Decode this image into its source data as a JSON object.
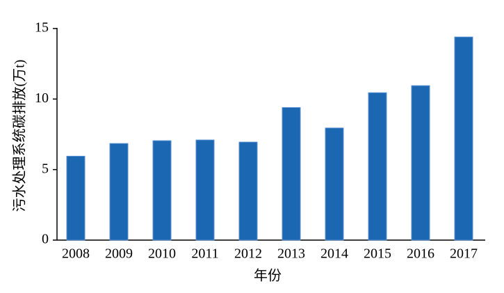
{
  "chart_data": {
    "type": "bar",
    "categories": [
      "2008",
      "2009",
      "2010",
      "2011",
      "2012",
      "2013",
      "2014",
      "2015",
      "2016",
      "2017"
    ],
    "values": [
      5.95,
      6.85,
      7.05,
      7.1,
      6.95,
      9.4,
      7.95,
      10.45,
      10.95,
      14.4
    ],
    "color": "#1b67b2",
    "ylim": [
      0,
      15
    ],
    "yticks": [
      0,
      5,
      10,
      15
    ],
    "ylabel": "污水处理系统碳排放(万t)",
    "xlabel": "年份",
    "grid": false
  }
}
